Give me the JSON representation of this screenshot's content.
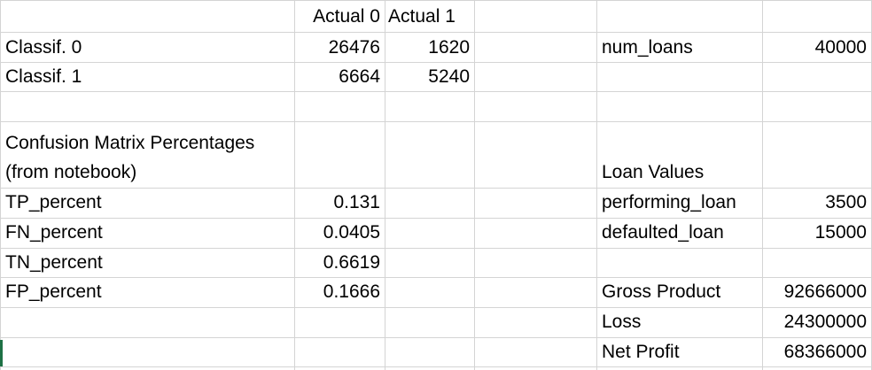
{
  "confusion": {
    "header_actual0": "Actual 0",
    "header_actual1": "Actual 1",
    "row0_label": "Classif. 0",
    "row0_a0": "26476",
    "row0_a1": "1620",
    "row1_label": "Classif. 1",
    "row1_a0": "6664",
    "row1_a1": "5240"
  },
  "percentages": {
    "title_line1": "Confusion Matrix Percentages",
    "title_line2": "(from notebook)",
    "tp_label": "TP_percent",
    "tp_value": "0.131",
    "fn_label": "FN_percent",
    "fn_value": "0.0405",
    "tn_label": "TN_percent",
    "tn_value": "0.6619",
    "fp_label": "FP_percent",
    "fp_value": "0.1666"
  },
  "loans": {
    "num_loans_label": "num_loans",
    "num_loans_value": "40000",
    "values_title": "Loan Values",
    "performing_label": "performing_loan",
    "performing_value": "3500",
    "defaulted_label": "defaulted_loan",
    "defaulted_value": "15000",
    "gross_label": "Gross Product",
    "gross_value": "92666000",
    "loss_label": "Loss",
    "loss_value": "24300000",
    "net_label": "Net Profit",
    "net_value": "68366000"
  },
  "colors": {
    "gridline": "#d4d4d4",
    "selection": "#1e7145"
  }
}
